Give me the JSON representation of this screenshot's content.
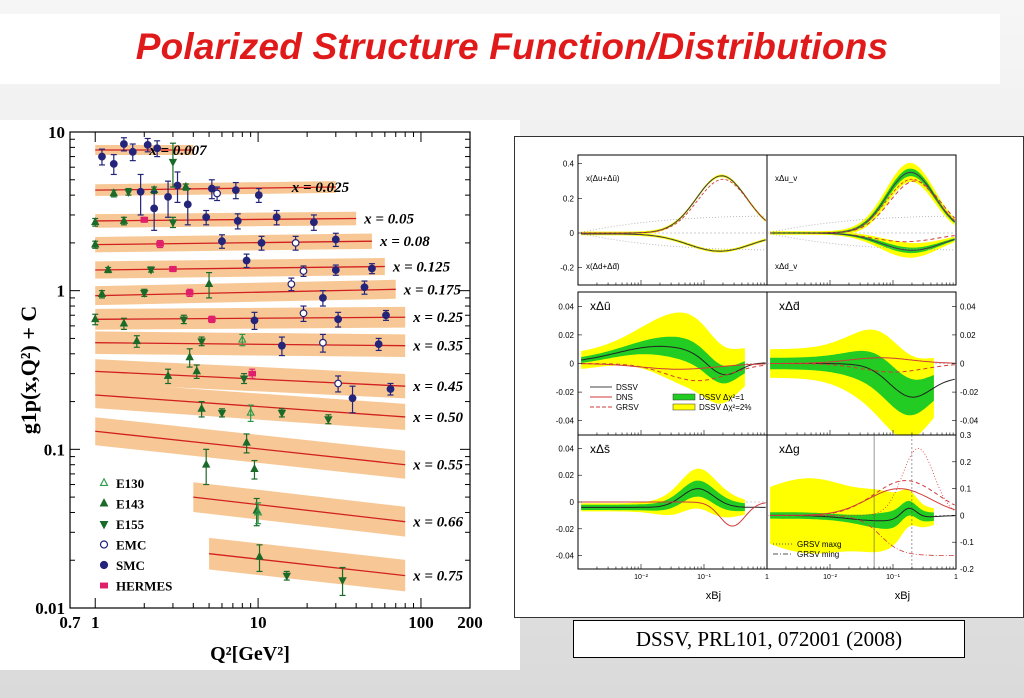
{
  "slide": {
    "title": "Polarized Structure Function/Distributions",
    "citation": "DSSV, PRL101, 072001 (2008)"
  },
  "chart_data": [
    {
      "type": "scatter",
      "title": "",
      "xlabel": "Q²[GeV²]",
      "ylabel": "g1p(x,Q²) + C",
      "xscale": "log",
      "yscale": "log",
      "xlim": [
        0.7,
        200
      ],
      "ylim": [
        0.01,
        10
      ],
      "x_tick_labels": [
        "0.7",
        "1",
        "10",
        "100",
        "200"
      ],
      "x_tick_values": [
        0.7,
        1,
        10,
        100,
        200
      ],
      "y_tick_labels": [
        "0.01",
        "0.1",
        "1",
        "10"
      ],
      "y_tick_values": [
        0.01,
        0.1,
        1,
        10
      ],
      "legend": {
        "placement": "bottom-left",
        "entries": [
          {
            "label": "E130",
            "marker": "open-triangle-up",
            "color": "#1a8a3a"
          },
          {
            "label": "E143",
            "marker": "filled-triangle-up",
            "color": "#1a6a2a"
          },
          {
            "label": "E155",
            "marker": "filled-triangle-down",
            "color": "#1a6a2a"
          },
          {
            "label": "EMC",
            "marker": "open-circle",
            "color": "#24247a"
          },
          {
            "label": "SMC",
            "marker": "filled-circle",
            "color": "#24247a"
          },
          {
            "label": "HERMES",
            "marker": "filled-square",
            "color": "#e0206a"
          }
        ]
      },
      "bands": [
        {
          "x_label": "x = 0.007",
          "x": 0.007,
          "q2_range": [
            1,
            4
          ],
          "value": [
            7.7,
            7.7
          ]
        },
        {
          "x_label": "x = 0.025",
          "x": 0.025,
          "q2_range": [
            1,
            30
          ],
          "value": [
            4.3,
            4.5
          ]
        },
        {
          "x_label": "x = 0.05",
          "x": 0.05,
          "q2_range": [
            1,
            40
          ],
          "value": [
            2.75,
            2.85
          ]
        },
        {
          "x_label": "x = 0.08",
          "x": 0.08,
          "q2_range": [
            1,
            50
          ],
          "value": [
            1.95,
            2.05
          ]
        },
        {
          "x_label": "x = 0.125",
          "x": 0.125,
          "q2_range": [
            1,
            60
          ],
          "value": [
            1.35,
            1.42
          ]
        },
        {
          "x_label": "x = 0.175",
          "x": 0.175,
          "q2_range": [
            1,
            70
          ],
          "value": [
            0.93,
            1.02
          ]
        },
        {
          "x_label": "x = 0.25",
          "x": 0.25,
          "q2_range": [
            1,
            80
          ],
          "value": [
            0.66,
            0.68
          ]
        },
        {
          "x_label": "x = 0.35",
          "x": 0.35,
          "q2_range": [
            1,
            80
          ],
          "value": [
            0.47,
            0.45
          ]
        },
        {
          "x_label": "x = 0.45",
          "x": 0.45,
          "q2_range": [
            1,
            80
          ],
          "value": [
            0.31,
            0.25
          ]
        },
        {
          "x_label": "x = 0.50",
          "x": 0.5,
          "q2_range": [
            1,
            80
          ],
          "value": [
            0.22,
            0.16
          ]
        },
        {
          "x_label": "x = 0.55",
          "x": 0.55,
          "q2_range": [
            1,
            80
          ],
          "value": [
            0.13,
            0.08
          ]
        },
        {
          "x_label": "x = 0.66",
          "x": 0.66,
          "q2_range": [
            4,
            80
          ],
          "value": [
            0.05,
            0.035
          ]
        },
        {
          "x_label": "x = 0.75",
          "x": 0.75,
          "q2_range": [
            5,
            80
          ],
          "value": [
            0.022,
            0.016
          ]
        }
      ],
      "points": [
        {
          "set": "SMC",
          "q2": 1.1,
          "y": 7.0,
          "err": 0.8
        },
        {
          "set": "SMC",
          "q2": 1.3,
          "y": 6.3,
          "err": 0.9
        },
        {
          "set": "SMC",
          "q2": 1.5,
          "y": 8.4,
          "err": 0.8
        },
        {
          "set": "SMC",
          "q2": 1.7,
          "y": 7.5,
          "err": 0.9
        },
        {
          "set": "SMC",
          "q2": 1.9,
          "y": 4.2,
          "err": 1.2
        },
        {
          "set": "SMC",
          "q2": 2.1,
          "y": 8.3,
          "err": 0.8
        },
        {
          "set": "SMC",
          "q2": 2.4,
          "y": 7.9,
          "err": 0.9
        },
        {
          "set": "SMC",
          "q2": 2.8,
          "y": 3.9,
          "err": 1.0
        },
        {
          "set": "SMC",
          "q2": 3.2,
          "y": 4.6,
          "err": 1.0
        },
        {
          "set": "SMC",
          "q2": 3.7,
          "y": 3.5,
          "err": 0.9
        },
        {
          "set": "SMC",
          "q2": 5.2,
          "y": 4.4,
          "err": 0.6
        },
        {
          "set": "EMC",
          "q2": 5.6,
          "y": 4.1,
          "err": 0.4
        },
        {
          "set": "SMC",
          "q2": 7.3,
          "y": 4.3,
          "err": 0.5
        },
        {
          "set": "SMC",
          "q2": 10.1,
          "y": 4.0,
          "err": 0.4
        },
        {
          "set": "E143",
          "q2": 1.3,
          "y": 4.1,
          "err": 0.2
        },
        {
          "set": "E155",
          "q2": 1.6,
          "y": 4.2,
          "err": 0.2
        },
        {
          "set": "E143",
          "q2": 2.3,
          "y": 4.3,
          "err": 0.2
        },
        {
          "set": "E143",
          "q2": 3.6,
          "y": 4.5,
          "err": 0.2
        },
        {
          "set": "E155",
          "q2": 3.0,
          "y": 6.5,
          "err": 2.0
        },
        {
          "set": "SMC",
          "q2": 2.3,
          "y": 3.3,
          "err": 0.9
        },
        {
          "set": "E143",
          "q2": 1.0,
          "y": 2.7,
          "err": 0.15
        },
        {
          "set": "E143",
          "q2": 1.5,
          "y": 2.75,
          "err": 0.15
        },
        {
          "set": "HERMES",
          "q2": 2.0,
          "y": 2.8,
          "err": 0.1
        },
        {
          "set": "E155",
          "q2": 3.0,
          "y": 2.7,
          "err": 0.2
        },
        {
          "set": "SMC",
          "q2": 4.8,
          "y": 2.9,
          "err": 0.3
        },
        {
          "set": "SMC",
          "q2": 7.5,
          "y": 2.75,
          "err": 0.3
        },
        {
          "set": "SMC",
          "q2": 13,
          "y": 2.9,
          "err": 0.3
        },
        {
          "set": "SMC",
          "q2": 22,
          "y": 2.7,
          "err": 0.3
        },
        {
          "set": "E143",
          "q2": 1.0,
          "y": 1.95,
          "err": 0.1
        },
        {
          "set": "HERMES",
          "q2": 2.5,
          "y": 1.97,
          "err": 0.1
        },
        {
          "set": "SMC",
          "q2": 6.0,
          "y": 2.05,
          "err": 0.2
        },
        {
          "set": "SMC",
          "q2": 10.5,
          "y": 2.0,
          "err": 0.2
        },
        {
          "set": "EMC",
          "q2": 17,
          "y": 2.0,
          "err": 0.2
        },
        {
          "set": "SMC",
          "q2": 30,
          "y": 2.1,
          "err": 0.2
        },
        {
          "set": "E143",
          "q2": 1.2,
          "y": 1.35,
          "err": 0.05
        },
        {
          "set": "E155",
          "q2": 2.2,
          "y": 1.36,
          "err": 0.05
        },
        {
          "set": "HERMES",
          "q2": 3.0,
          "y": 1.37,
          "err": 0.05
        },
        {
          "set": "E143",
          "q2": 5.0,
          "y": 1.1,
          "err": 0.2
        },
        {
          "set": "SMC",
          "q2": 8.5,
          "y": 1.55,
          "err": 0.15
        },
        {
          "set": "EMC",
          "q2": 19,
          "y": 1.33,
          "err": 0.1
        },
        {
          "set": "SMC",
          "q2": 30,
          "y": 1.35,
          "err": 0.1
        },
        {
          "set": "SMC",
          "q2": 50,
          "y": 1.38,
          "err": 0.1
        },
        {
          "set": "E143",
          "q2": 1.1,
          "y": 0.95,
          "err": 0.05
        },
        {
          "set": "E155",
          "q2": 2.0,
          "y": 0.97,
          "err": 0.05
        },
        {
          "set": "HERMES",
          "q2": 3.8,
          "y": 0.97,
          "err": 0.05
        },
        {
          "set": "EMC",
          "q2": 16,
          "y": 1.1,
          "err": 0.1
        },
        {
          "set": "SMC",
          "q2": 25,
          "y": 0.9,
          "err": 0.1
        },
        {
          "set": "SMC",
          "q2": 45,
          "y": 1.05,
          "err": 0.1
        },
        {
          "set": "E143",
          "q2": 1.0,
          "y": 0.66,
          "err": 0.05
        },
        {
          "set": "E143",
          "q2": 1.5,
          "y": 0.62,
          "err": 0.05
        },
        {
          "set": "E155",
          "q2": 3.5,
          "y": 0.66,
          "err": 0.04
        },
        {
          "set": "HERMES",
          "q2": 5.2,
          "y": 0.66,
          "err": 0.03
        },
        {
          "set": "SMC",
          "q2": 9.5,
          "y": 0.65,
          "err": 0.08
        },
        {
          "set": "EMC",
          "q2": 19,
          "y": 0.72,
          "err": 0.08
        },
        {
          "set": "SMC",
          "q2": 31,
          "y": 0.66,
          "err": 0.07
        },
        {
          "set": "SMC",
          "q2": 61,
          "y": 0.7,
          "err": 0.05
        },
        {
          "set": "E143",
          "q2": 1.8,
          "y": 0.48,
          "err": 0.04
        },
        {
          "set": "E143",
          "q2": 3.8,
          "y": 0.38,
          "err": 0.05
        },
        {
          "set": "E155",
          "q2": 4.5,
          "y": 0.48,
          "err": 0.03
        },
        {
          "set": "E130",
          "q2": 8.0,
          "y": 0.49,
          "err": 0.04
        },
        {
          "set": "SMC",
          "q2": 14,
          "y": 0.45,
          "err": 0.06
        },
        {
          "set": "EMC",
          "q2": 25,
          "y": 0.47,
          "err": 0.06
        },
        {
          "set": "SMC",
          "q2": 55,
          "y": 0.46,
          "err": 0.04
        },
        {
          "set": "E143",
          "q2": 2.8,
          "y": 0.29,
          "err": 0.03
        },
        {
          "set": "E143",
          "q2": 4.2,
          "y": 0.31,
          "err": 0.03
        },
        {
          "set": "E155",
          "q2": 8.2,
          "y": 0.28,
          "err": 0.02
        },
        {
          "set": "HERMES",
          "q2": 9.2,
          "y": 0.3,
          "err": 0.02
        },
        {
          "set": "EMC",
          "q2": 31,
          "y": 0.26,
          "err": 0.03
        },
        {
          "set": "SMC",
          "q2": 38,
          "y": 0.21,
          "err": 0.04
        },
        {
          "set": "SMC",
          "q2": 65,
          "y": 0.24,
          "err": 0.02
        },
        {
          "set": "E143",
          "q2": 4.5,
          "y": 0.18,
          "err": 0.02
        },
        {
          "set": "E155",
          "q2": 6.0,
          "y": 0.17,
          "err": 0.01
        },
        {
          "set": "E130",
          "q2": 9.0,
          "y": 0.17,
          "err": 0.02
        },
        {
          "set": "E155",
          "q2": 14,
          "y": 0.17,
          "err": 0.01
        },
        {
          "set": "E155",
          "q2": 27,
          "y": 0.155,
          "err": 0.01
        },
        {
          "set": "E143",
          "q2": 4.8,
          "y": 0.08,
          "err": 0.02
        },
        {
          "set": "E143",
          "q2": 8.5,
          "y": 0.11,
          "err": 0.015
        },
        {
          "set": "E143",
          "q2": 9.5,
          "y": 0.075,
          "err": 0.01
        },
        {
          "set": "E143",
          "q2": 9.8,
          "y": 0.041,
          "err": 0.008
        },
        {
          "set": "E130",
          "q2": 10.0,
          "y": 0.04,
          "err": 0.006
        },
        {
          "set": "E143",
          "q2": 10.2,
          "y": 0.021,
          "err": 0.004
        },
        {
          "set": "E155",
          "q2": 15,
          "y": 0.016,
          "err": 0.001
        },
        {
          "set": "E155",
          "q2": 33,
          "y": 0.015,
          "err": 0.003
        }
      ]
    },
    {
      "type": "line",
      "title": "",
      "xlabel": "xBj",
      "xscale": "log",
      "x_tick_labels": [
        "10⁻²",
        "10⁻¹",
        "1"
      ],
      "panels": [
        {
          "label": "x(Δu+Δū)",
          "label2": "x(Δd+Δd̄)",
          "ylim": [
            -0.3,
            0.45
          ],
          "y_tick_labels": [
            "0.4",
            "0.2",
            "0",
            "-0.2"
          ],
          "axis": "left"
        },
        {
          "label": "xΔu_v",
          "label2": "xΔd_v",
          "ylim": [
            -0.3,
            0.45
          ],
          "y_tick_labels": [],
          "axis": "right"
        },
        {
          "label": "xΔū",
          "ylim": [
            -0.05,
            0.05
          ],
          "y_tick_labels": [
            "0.04",
            "0.02",
            "0",
            "-0.02",
            "-0.04"
          ],
          "axis": "left"
        },
        {
          "label": "xΔd̄",
          "ylim": [
            -0.05,
            0.05
          ],
          "y_tick_labels": [
            "0.04",
            "0.02",
            "0",
            "-0.02",
            "-0.04"
          ],
          "axis": "right"
        },
        {
          "label": "xΔs̄",
          "ylim": [
            -0.05,
            0.05
          ],
          "y_tick_labels": [
            "0.04",
            "0.02",
            "0",
            "-0.02",
            "-0.04"
          ],
          "axis": "left"
        },
        {
          "label": "xΔg",
          "ylim": [
            -0.2,
            0.3
          ],
          "y_tick_labels": [
            "0.3",
            "0.2",
            "0.1",
            "0",
            "-0.1",
            "-0.2"
          ],
          "axis": "right"
        }
      ],
      "legend_a": {
        "entries": [
          {
            "label": "DSSV",
            "style": "solid",
            "color": "#444444"
          },
          {
            "label": "DNS",
            "style": "solid",
            "color": "#d23a3a"
          },
          {
            "label": "GRSV",
            "style": "dashed",
            "color": "#d23a3a"
          },
          {
            "label": "DSSV Δχ²=1",
            "style": "band",
            "color": "#22cc22"
          },
          {
            "label": "DSSV Δχ²=2%",
            "style": "band",
            "color": "#ffff00"
          }
        ]
      },
      "legend_b": {
        "entries": [
          {
            "label": "GRSV  maxg",
            "style": "dotted",
            "color": "#555555"
          },
          {
            "label": "GRSV  ming",
            "style": "dash-dot",
            "color": "#555555"
          }
        ]
      }
    }
  ]
}
